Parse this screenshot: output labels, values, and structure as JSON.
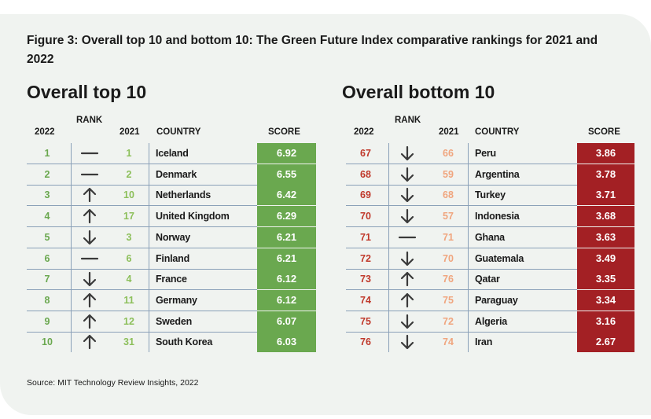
{
  "figure_title": "Figure 3: Overall top 10 and bottom 10: The Green Future Index comparative rankings for 2021 and 2022",
  "source": "Source: MIT Technology Review Insights, 2022",
  "colors": {
    "top_rank_2022": "#6aa84f",
    "top_rank_2021": "#8cbf5a",
    "top_score_bg": "#6aa84f",
    "bottom_rank_2022": "#c0392b",
    "bottom_rank_2021": "#f0a57e",
    "bottom_score_bg": "#a32024",
    "arrow": "#3a3a3a",
    "separator": "#8aa0b8"
  },
  "chart_data": [
    {
      "type": "table",
      "title": "Overall top 10",
      "columns": {
        "rank_header": "RANK",
        "y2022": "2022",
        "y2021": "2021",
        "country": "COUNTRY",
        "score": "SCORE"
      },
      "rows": [
        {
          "rank_2022": "1",
          "change": "same",
          "rank_2021": "1",
          "country": "Iceland",
          "score": "6.92"
        },
        {
          "rank_2022": "2",
          "change": "same",
          "rank_2021": "2",
          "country": "Denmark",
          "score": "6.55"
        },
        {
          "rank_2022": "3",
          "change": "up",
          "rank_2021": "10",
          "country": "Netherlands",
          "score": "6.42"
        },
        {
          "rank_2022": "4",
          "change": "up",
          "rank_2021": "17",
          "country": "United Kingdom",
          "score": "6.29"
        },
        {
          "rank_2022": "5",
          "change": "down",
          "rank_2021": "3",
          "country": "Norway",
          "score": "6.21"
        },
        {
          "rank_2022": "6",
          "change": "same",
          "rank_2021": "6",
          "country": "Finland",
          "score": "6.21"
        },
        {
          "rank_2022": "7",
          "change": "down",
          "rank_2021": "4",
          "country": "France",
          "score": "6.12"
        },
        {
          "rank_2022": "8",
          "change": "up",
          "rank_2021": "11",
          "country": "Germany",
          "score": "6.12"
        },
        {
          "rank_2022": "9",
          "change": "up",
          "rank_2021": "12",
          "country": "Sweden",
          "score": "6.07"
        },
        {
          "rank_2022": "10",
          "change": "up",
          "rank_2021": "31",
          "country": "South Korea",
          "score": "6.03"
        }
      ]
    },
    {
      "type": "table",
      "title": "Overall bottom 10",
      "columns": {
        "rank_header": "RANK",
        "y2022": "2022",
        "y2021": "2021",
        "country": "COUNTRY",
        "score": "SCORE"
      },
      "rows": [
        {
          "rank_2022": "67",
          "change": "down",
          "rank_2021": "66",
          "country": "Peru",
          "score": "3.86"
        },
        {
          "rank_2022": "68",
          "change": "down",
          "rank_2021": "59",
          "country": "Argentina",
          "score": "3.78"
        },
        {
          "rank_2022": "69",
          "change": "down",
          "rank_2021": "68",
          "country": "Turkey",
          "score": "3.71"
        },
        {
          "rank_2022": "70",
          "change": "down",
          "rank_2021": "57",
          "country": "Indonesia",
          "score": "3.68"
        },
        {
          "rank_2022": "71",
          "change": "same",
          "rank_2021": "71",
          "country": "Ghana",
          "score": "3.63"
        },
        {
          "rank_2022": "72",
          "change": "down",
          "rank_2021": "70",
          "country": "Guatemala",
          "score": "3.49"
        },
        {
          "rank_2022": "73",
          "change": "up",
          "rank_2021": "76",
          "country": "Qatar",
          "score": "3.35"
        },
        {
          "rank_2022": "74",
          "change": "up",
          "rank_2021": "75",
          "country": "Paraguay",
          "score": "3.34"
        },
        {
          "rank_2022": "75",
          "change": "down",
          "rank_2021": "72",
          "country": "Algeria",
          "score": "3.16"
        },
        {
          "rank_2022": "76",
          "change": "down",
          "rank_2021": "74",
          "country": "Iran",
          "score": "2.67"
        }
      ]
    }
  ]
}
